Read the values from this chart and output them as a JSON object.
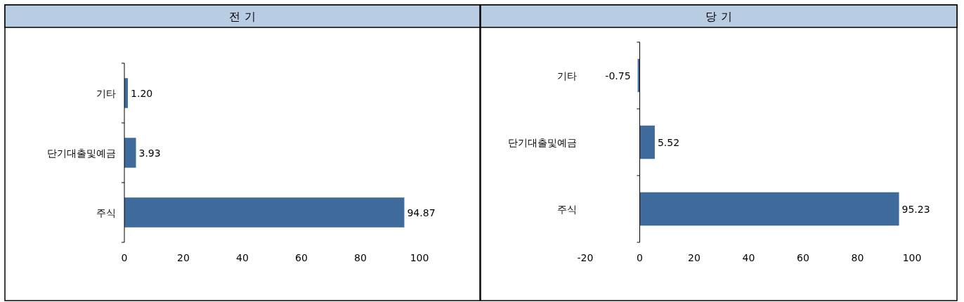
{
  "chart_data": [
    {
      "type": "bar",
      "orientation": "horizontal",
      "title": "전 기",
      "categories": [
        "기타",
        "단기대출및예금",
        "주식"
      ],
      "values": [
        1.2,
        3.93,
        94.87
      ],
      "value_labels": [
        "1.20",
        "3.93",
        "94.87"
      ],
      "color": "#3f6a9c",
      "xlim": [
        0,
        100
      ],
      "xticks": [
        0,
        20,
        40,
        60,
        80,
        100
      ]
    },
    {
      "type": "bar",
      "orientation": "horizontal",
      "title": "당 기",
      "categories": [
        "기타",
        "단기대출및예금",
        "주식"
      ],
      "values": [
        -0.75,
        5.52,
        95.23
      ],
      "value_labels": [
        "-0.75",
        "5.52",
        "95.23"
      ],
      "color": "#3f6a9c",
      "xlim": [
        -20,
        100
      ],
      "xticks": [
        -20,
        0,
        20,
        40,
        60,
        80,
        100
      ]
    }
  ]
}
